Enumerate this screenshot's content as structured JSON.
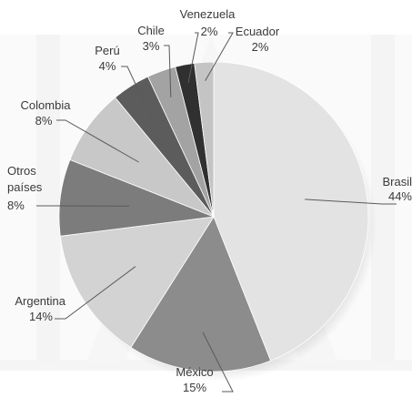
{
  "chart_data": {
    "type": "pie",
    "title": "",
    "slices": [
      {
        "name": "Brasil",
        "value": 44,
        "value_label": "44%",
        "color": "#e3e3e3"
      },
      {
        "name": "México",
        "value": 15,
        "value_label": "15%",
        "color": "#8c8c8c"
      },
      {
        "name": "Argentina",
        "value": 14,
        "value_label": "14%",
        "color": "#d3d3d3"
      },
      {
        "name": "Otros países",
        "value": 8,
        "value_label": "8%",
        "color": "#7c7c7c"
      },
      {
        "name": "Colombia",
        "value": 8,
        "value_label": "8%",
        "color": "#c8c8c8"
      },
      {
        "name": "Perú",
        "value": 4,
        "value_label": "4%",
        "color": "#5c5c5c"
      },
      {
        "name": "Chile",
        "value": 3,
        "value_label": "3%",
        "color": "#a3a3a3"
      },
      {
        "name": "Venezuela",
        "value": 2,
        "value_label": "2%",
        "color": "#303030"
      },
      {
        "name": "Ecuador",
        "value": 2,
        "value_label": "2%",
        "color": "#c4c4c4"
      }
    ],
    "start_direction": "12 o'clock",
    "direction": "clockwise",
    "legend": "none"
  }
}
